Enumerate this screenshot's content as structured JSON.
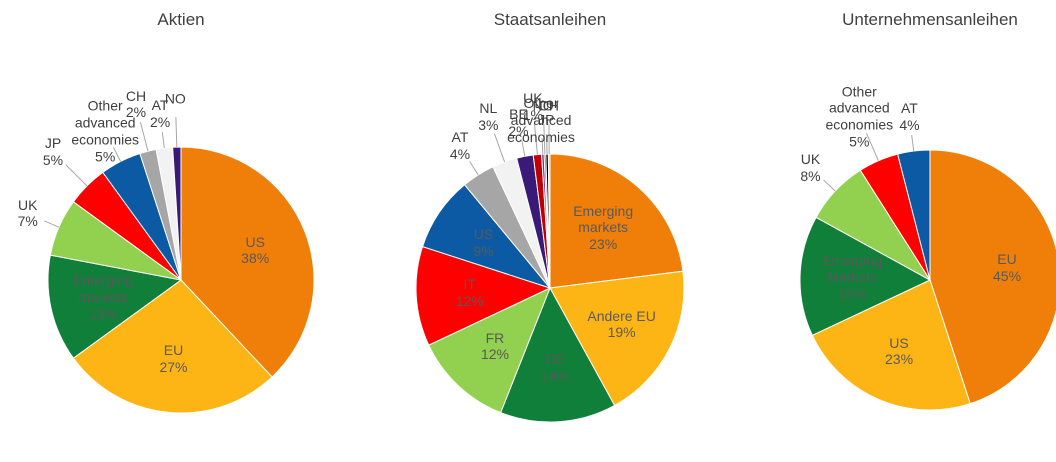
{
  "chart_data": [
    {
      "type": "pie",
      "title": "Aktien",
      "categories": [
        "US",
        "EU",
        "Emerging markets",
        "UK",
        "JP",
        "Other advanced economies",
        "CH",
        "AT",
        "NO"
      ],
      "values": [
        38,
        27,
        13,
        7,
        5,
        5,
        2,
        2,
        1
      ],
      "value_labels": [
        "38%",
        "27%",
        "13%",
        "7%",
        "5%",
        "5%",
        "2%",
        "2%",
        null
      ],
      "colors": [
        "#f07f09",
        "#fdb515",
        "#0f7f3a",
        "#92d050",
        "#ff0000",
        "#0b5aa3",
        "#a6a6a6",
        "#f2f2f2",
        "#3a1a78"
      ]
    },
    {
      "type": "pie",
      "title": "Staatsanleihen",
      "categories": [
        "Emerging markets",
        "Andere EU",
        "DE",
        "FR",
        "IT",
        "US",
        "AT",
        "NL",
        "BE",
        "UK",
        "Other advanced economies",
        "NO",
        "JP",
        "CH"
      ],
      "values": [
        23,
        19,
        14,
        12,
        12,
        9,
        4,
        3,
        2,
        1,
        0.3,
        0.2,
        0.3,
        0.2
      ],
      "value_labels": [
        "23%",
        "19%",
        "14%",
        "12%",
        "12%",
        "9%",
        "4%",
        "3%",
        "2%",
        "1%",
        null,
        null,
        null,
        null
      ],
      "colors": [
        "#f07f09",
        "#fdb515",
        "#0f7f3a",
        "#92d050",
        "#ff0000",
        "#0b5aa3",
        "#a6a6a6",
        "#f2f2f2",
        "#3a1a78",
        "#c00000",
        "#7030a0",
        "#404040",
        "#000000",
        "#ffc000"
      ]
    },
    {
      "type": "pie",
      "title": "Unternehmensanleihen",
      "categories": [
        "EU",
        "US",
        "Emerging Markets",
        "UK",
        "Other advanced economies",
        "AT"
      ],
      "values": [
        45,
        23,
        15,
        8,
        5,
        4
      ],
      "value_labels": [
        "45%",
        "23%",
        "15%",
        "8%",
        "5%",
        "4%"
      ],
      "colors": [
        "#f07f09",
        "#fdb515",
        "#0f7f3a",
        "#92d050",
        "#ff0000",
        "#0b5aa3"
      ]
    }
  ]
}
